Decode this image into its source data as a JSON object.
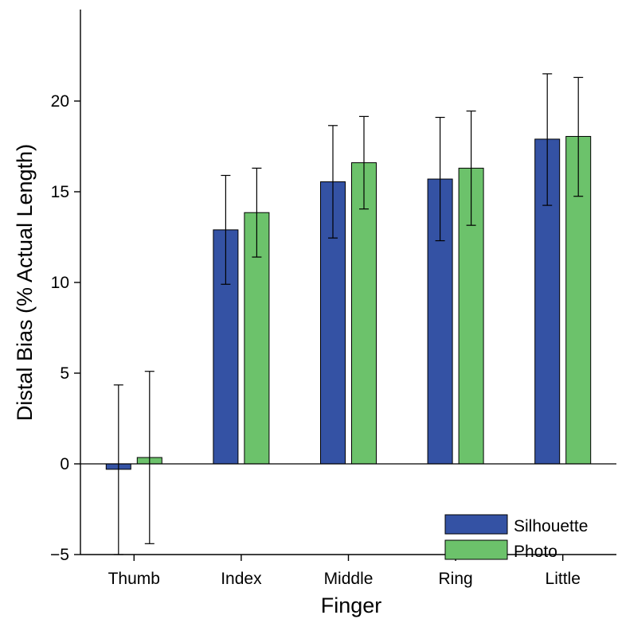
{
  "chart_data": {
    "type": "bar",
    "title": "",
    "xlabel": "Finger",
    "ylabel": "Distal Bias (% Actual Length)",
    "categories": [
      "Thumb",
      "Index",
      "Middle",
      "Ring",
      "Little"
    ],
    "ylim": [
      -5,
      25
    ],
    "yticks": [
      "−5",
      "0",
      "5",
      "10",
      "15",
      "20"
    ],
    "grid": false,
    "legend_position": "bottom-right",
    "series": [
      {
        "name": "Silhouette",
        "color": "#3452a4",
        "values": [
          -0.3,
          12.9,
          15.55,
          15.7,
          17.9
        ],
        "error_low": [
          -5.0,
          9.9,
          12.45,
          12.3,
          14.25
        ],
        "error_high": [
          4.35,
          15.9,
          18.65,
          19.1,
          21.5
        ]
      },
      {
        "name": "Photo",
        "color": "#6cc26b",
        "values": [
          0.35,
          13.85,
          16.6,
          16.3,
          18.05
        ],
        "error_low": [
          -4.4,
          11.4,
          14.05,
          13.15,
          14.75
        ],
        "error_high": [
          5.1,
          16.3,
          19.15,
          19.45,
          21.3
        ]
      }
    ]
  }
}
